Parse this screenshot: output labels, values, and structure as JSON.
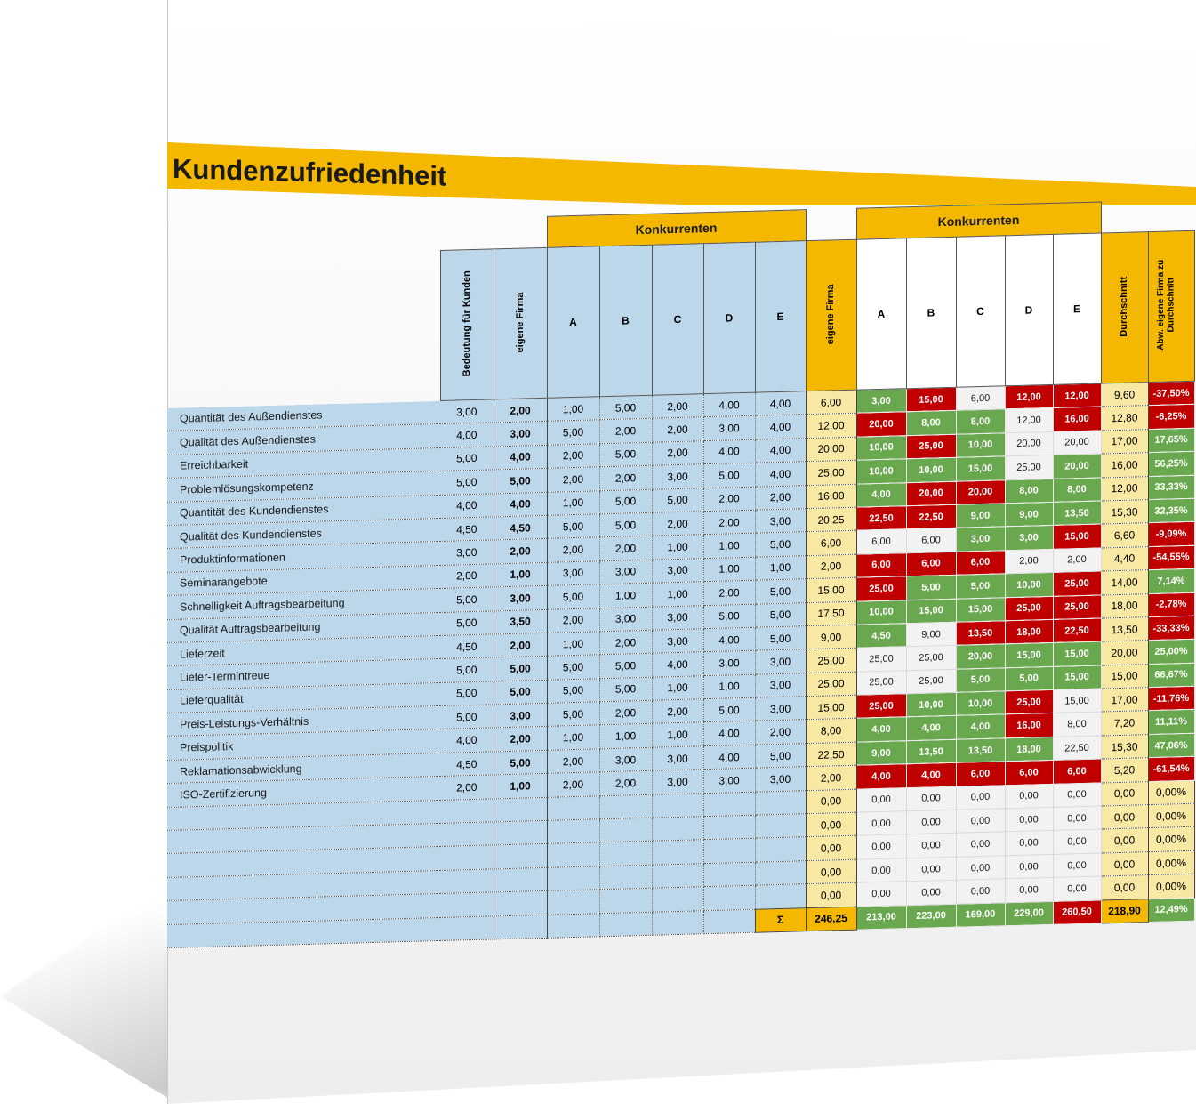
{
  "title": "Kundenzufriedenheit",
  "headers": {
    "konkurrenten": "Konkurrenten",
    "konkurrenten2": "Konkurrenten",
    "bedeutung": "Bedeutung für Kunden",
    "eigene_firma": "eigene Firma",
    "eigene_firma2": "eigene Firma",
    "competitors": [
      "A",
      "B",
      "C",
      "D",
      "E"
    ],
    "durchschnitt": "Durchschnitt",
    "abweichung": "Abw. eigene Firma zu Durchschnitt",
    "sigma": "Σ"
  },
  "rows": [
    {
      "label": "Quantität des Außendienstes",
      "bedeutung": "3,00",
      "eigene": "2,00",
      "comp": [
        "1,00",
        "5,00",
        "2,00",
        "4,00",
        "4,00"
      ],
      "eigeneW": "6,00",
      "compW": [
        "3,00",
        "15,00",
        "6,00",
        "12,00",
        "12,00"
      ],
      "cls": [
        "g",
        "r",
        "w",
        "r",
        "r"
      ],
      "durch": "9,60",
      "abw": "-37,50%",
      "abwCls": "r"
    },
    {
      "label": "Qualität des Außendienstes",
      "bedeutung": "4,00",
      "eigene": "3,00",
      "comp": [
        "5,00",
        "2,00",
        "2,00",
        "3,00",
        "4,00"
      ],
      "eigeneW": "12,00",
      "compW": [
        "20,00",
        "8,00",
        "8,00",
        "12,00",
        "16,00"
      ],
      "cls": [
        "r",
        "g",
        "g",
        "w",
        "r"
      ],
      "durch": "12,80",
      "abw": "-6,25%",
      "abwCls": "r"
    },
    {
      "label": "Erreichbarkeit",
      "bedeutung": "5,00",
      "eigene": "4,00",
      "comp": [
        "2,00",
        "5,00",
        "2,00",
        "4,00",
        "4,00"
      ],
      "eigeneW": "20,00",
      "compW": [
        "10,00",
        "25,00",
        "10,00",
        "20,00",
        "20,00"
      ],
      "cls": [
        "g",
        "r",
        "g",
        "w",
        "w"
      ],
      "durch": "17,00",
      "abw": "17,65%",
      "abwCls": "g"
    },
    {
      "label": "Problemlösungskompetenz",
      "bedeutung": "5,00",
      "eigene": "5,00",
      "comp": [
        "2,00",
        "2,00",
        "3,00",
        "5,00",
        "4,00"
      ],
      "eigeneW": "25,00",
      "compW": [
        "10,00",
        "10,00",
        "15,00",
        "25,00",
        "20,00"
      ],
      "cls": [
        "g",
        "g",
        "g",
        "w",
        "g"
      ],
      "durch": "16,00",
      "abw": "56,25%",
      "abwCls": "g"
    },
    {
      "label": "Quantität des Kundendienstes",
      "bedeutung": "4,00",
      "eigene": "4,00",
      "comp": [
        "1,00",
        "5,00",
        "5,00",
        "2,00",
        "2,00"
      ],
      "eigeneW": "16,00",
      "compW": [
        "4,00",
        "20,00",
        "20,00",
        "8,00",
        "8,00"
      ],
      "cls": [
        "g",
        "r",
        "r",
        "g",
        "g"
      ],
      "durch": "12,00",
      "abw": "33,33%",
      "abwCls": "g"
    },
    {
      "label": "Qualität des Kundendienstes",
      "bedeutung": "4,50",
      "eigene": "4,50",
      "comp": [
        "5,00",
        "5,00",
        "2,00",
        "2,00",
        "3,00"
      ],
      "eigeneW": "20,25",
      "compW": [
        "22,50",
        "22,50",
        "9,00",
        "9,00",
        "13,50"
      ],
      "cls": [
        "r",
        "r",
        "g",
        "g",
        "g"
      ],
      "durch": "15,30",
      "abw": "32,35%",
      "abwCls": "g"
    },
    {
      "label": "Produktinformationen",
      "bedeutung": "3,00",
      "eigene": "2,00",
      "comp": [
        "2,00",
        "2,00",
        "1,00",
        "1,00",
        "5,00"
      ],
      "eigeneW": "6,00",
      "compW": [
        "6,00",
        "6,00",
        "3,00",
        "3,00",
        "15,00"
      ],
      "cls": [
        "w",
        "w",
        "g",
        "g",
        "r"
      ],
      "durch": "6,60",
      "abw": "-9,09%",
      "abwCls": "r"
    },
    {
      "label": "Seminarangebote",
      "bedeutung": "2,00",
      "eigene": "1,00",
      "comp": [
        "3,00",
        "3,00",
        "3,00",
        "1,00",
        "1,00"
      ],
      "eigeneW": "2,00",
      "compW": [
        "6,00",
        "6,00",
        "6,00",
        "2,00",
        "2,00"
      ],
      "cls": [
        "r",
        "r",
        "r",
        "w",
        "w"
      ],
      "durch": "4,40",
      "abw": "-54,55%",
      "abwCls": "r"
    },
    {
      "label": "Schnelligkeit Auftragsbearbeitung",
      "bedeutung": "5,00",
      "eigene": "3,00",
      "comp": [
        "5,00",
        "1,00",
        "1,00",
        "2,00",
        "5,00"
      ],
      "eigeneW": "15,00",
      "compW": [
        "25,00",
        "5,00",
        "5,00",
        "10,00",
        "25,00"
      ],
      "cls": [
        "r",
        "g",
        "g",
        "g",
        "r"
      ],
      "durch": "14,00",
      "abw": "7,14%",
      "abwCls": "g"
    },
    {
      "label": "Qualität Auftragsbearbeitung",
      "bedeutung": "5,00",
      "eigene": "3,50",
      "comp": [
        "2,00",
        "3,00",
        "3,00",
        "5,00",
        "5,00"
      ],
      "eigeneW": "17,50",
      "compW": [
        "10,00",
        "15,00",
        "15,00",
        "25,00",
        "25,00"
      ],
      "cls": [
        "g",
        "g",
        "g",
        "r",
        "r"
      ],
      "durch": "18,00",
      "abw": "-2,78%",
      "abwCls": "r"
    },
    {
      "label": "Lieferzeit",
      "bedeutung": "4,50",
      "eigene": "2,00",
      "comp": [
        "1,00",
        "2,00",
        "3,00",
        "4,00",
        "5,00"
      ],
      "eigeneW": "9,00",
      "compW": [
        "4,50",
        "9,00",
        "13,50",
        "18,00",
        "22,50"
      ],
      "cls": [
        "g",
        "w",
        "r",
        "r",
        "r"
      ],
      "durch": "13,50",
      "abw": "-33,33%",
      "abwCls": "r"
    },
    {
      "label": "Liefer-Termintreue",
      "bedeutung": "5,00",
      "eigene": "5,00",
      "comp": [
        "5,00",
        "5,00",
        "4,00",
        "3,00",
        "3,00"
      ],
      "eigeneW": "25,00",
      "compW": [
        "25,00",
        "25,00",
        "20,00",
        "15,00",
        "15,00"
      ],
      "cls": [
        "w",
        "w",
        "g",
        "g",
        "g"
      ],
      "durch": "20,00",
      "abw": "25,00%",
      "abwCls": "g"
    },
    {
      "label": "Lieferqualität",
      "bedeutung": "5,00",
      "eigene": "5,00",
      "comp": [
        "5,00",
        "5,00",
        "1,00",
        "1,00",
        "3,00"
      ],
      "eigeneW": "25,00",
      "compW": [
        "25,00",
        "25,00",
        "5,00",
        "5,00",
        "15,00"
      ],
      "cls": [
        "w",
        "w",
        "g",
        "g",
        "g"
      ],
      "durch": "15,00",
      "abw": "66,67%",
      "abwCls": "g"
    },
    {
      "label": "Preis-Leistungs-Verhältnis",
      "bedeutung": "5,00",
      "eigene": "3,00",
      "comp": [
        "5,00",
        "2,00",
        "2,00",
        "5,00",
        "3,00"
      ],
      "eigeneW": "15,00",
      "compW": [
        "25,00",
        "10,00",
        "10,00",
        "25,00",
        "15,00"
      ],
      "cls": [
        "r",
        "g",
        "g",
        "r",
        "w"
      ],
      "durch": "17,00",
      "abw": "-11,76%",
      "abwCls": "r"
    },
    {
      "label": "Preispolitik",
      "bedeutung": "4,00",
      "eigene": "2,00",
      "comp": [
        "1,00",
        "1,00",
        "1,00",
        "4,00",
        "2,00"
      ],
      "eigeneW": "8,00",
      "compW": [
        "4,00",
        "4,00",
        "4,00",
        "16,00",
        "8,00"
      ],
      "cls": [
        "g",
        "g",
        "g",
        "r",
        "w"
      ],
      "durch": "7,20",
      "abw": "11,11%",
      "abwCls": "g"
    },
    {
      "label": "Reklamationsabwicklung",
      "bedeutung": "4,50",
      "eigene": "5,00",
      "comp": [
        "2,00",
        "3,00",
        "3,00",
        "4,00",
        "5,00"
      ],
      "eigeneW": "22,50",
      "compW": [
        "9,00",
        "13,50",
        "13,50",
        "18,00",
        "22,50"
      ],
      "cls": [
        "g",
        "g",
        "g",
        "g",
        "w"
      ],
      "durch": "15,30",
      "abw": "47,06%",
      "abwCls": "g"
    },
    {
      "label": "ISO-Zertifizierung",
      "bedeutung": "2,00",
      "eigene": "1,00",
      "comp": [
        "2,00",
        "2,00",
        "3,00",
        "3,00",
        "3,00"
      ],
      "eigeneW": "2,00",
      "compW": [
        "4,00",
        "4,00",
        "6,00",
        "6,00",
        "6,00"
      ],
      "cls": [
        "r",
        "r",
        "r",
        "r",
        "r"
      ],
      "durch": "5,20",
      "abw": "-61,54%",
      "abwCls": "r"
    },
    {
      "label": "",
      "bedeutung": "",
      "eigene": "",
      "comp": [
        "",
        "",
        "",
        "",
        ""
      ],
      "eigeneW": "0,00",
      "compW": [
        "0,00",
        "0,00",
        "0,00",
        "0,00",
        "0,00"
      ],
      "cls": [
        "w",
        "w",
        "w",
        "w",
        "w"
      ],
      "durch": "0,00",
      "abw": "0,00%",
      "abwCls": "d"
    },
    {
      "label": "",
      "bedeutung": "",
      "eigene": "",
      "comp": [
        "",
        "",
        "",
        "",
        ""
      ],
      "eigeneW": "0,00",
      "compW": [
        "0,00",
        "0,00",
        "0,00",
        "0,00",
        "0,00"
      ],
      "cls": [
        "w",
        "w",
        "w",
        "w",
        "w"
      ],
      "durch": "0,00",
      "abw": "0,00%",
      "abwCls": "d"
    },
    {
      "label": "",
      "bedeutung": "",
      "eigene": "",
      "comp": [
        "",
        "",
        "",
        "",
        ""
      ],
      "eigeneW": "0,00",
      "compW": [
        "0,00",
        "0,00",
        "0,00",
        "0,00",
        "0,00"
      ],
      "cls": [
        "w",
        "w",
        "w",
        "w",
        "w"
      ],
      "durch": "0,00",
      "abw": "0,00%",
      "abwCls": "d"
    },
    {
      "label": "",
      "bedeutung": "",
      "eigene": "",
      "comp": [
        "",
        "",
        "",
        "",
        ""
      ],
      "eigeneW": "0,00",
      "compW": [
        "0,00",
        "0,00",
        "0,00",
        "0,00",
        "0,00"
      ],
      "cls": [
        "w",
        "w",
        "w",
        "w",
        "w"
      ],
      "durch": "0,00",
      "abw": "0,00%",
      "abwCls": "d"
    },
    {
      "label": "",
      "bedeutung": "",
      "eigene": "",
      "comp": [
        "",
        "",
        "",
        "",
        ""
      ],
      "eigeneW": "0,00",
      "compW": [
        "0,00",
        "0,00",
        "0,00",
        "0,00",
        "0,00"
      ],
      "cls": [
        "w",
        "w",
        "w",
        "w",
        "w"
      ],
      "durch": "0,00",
      "abw": "0,00%",
      "abwCls": "d"
    }
  ],
  "totals": {
    "eigeneW": "246,25",
    "compW": [
      "213,00",
      "223,00",
      "169,00",
      "229,00",
      "260,50"
    ],
    "cls": [
      "g",
      "g",
      "g",
      "g",
      "r"
    ],
    "durch": "218,90",
    "abw": "12,49%",
    "abwCls": "g"
  },
  "colors": {
    "gold": "#f5b800",
    "blue": "#bcd6ea",
    "pale": "#f7e8a3",
    "green": "#6aa84f",
    "red": "#c00000"
  }
}
